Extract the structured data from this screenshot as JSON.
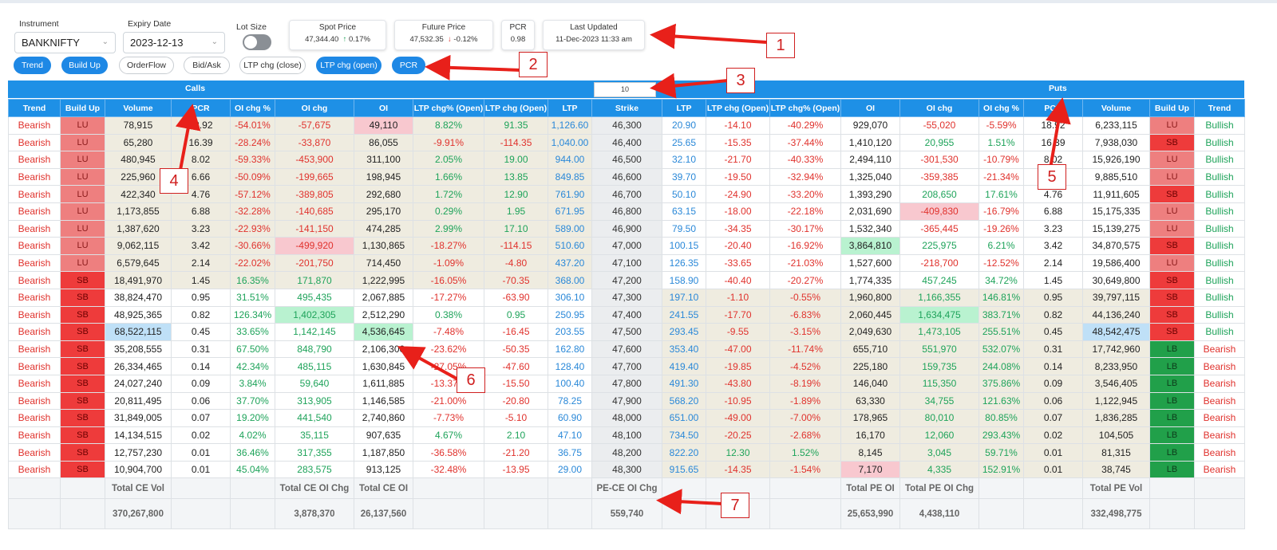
{
  "controls": {
    "instrument_label": "Instrument",
    "instrument_value": "BANKNIFTY",
    "expiry_label": "Expiry Date",
    "expiry_value": "2023-12-13",
    "lot_label": "Lot Size"
  },
  "cards": {
    "spot": {
      "title": "Spot Price",
      "value": "47,344.40",
      "change": "0.17%"
    },
    "future": {
      "title": "Future Price",
      "value": "47,532.35",
      "change": "-0.12%"
    },
    "pcr": {
      "title": "PCR",
      "value": "0.98"
    },
    "updated": {
      "title": "Last Updated",
      "value": "11-Dec-2023  11:33 am"
    }
  },
  "tabs": [
    "Trend",
    "Build Up",
    "OrderFlow",
    "Bid/Ask",
    "LTP chg (close)",
    "LTP chg (open)",
    "PCR"
  ],
  "bands": {
    "calls": "Calls",
    "puts": "Puts",
    "strike_step": "10"
  },
  "headers": [
    "Trend",
    "Build Up",
    "Volume",
    "PCR",
    "OI chg %",
    "OI chg",
    "OI",
    "LTP chg% (Open)",
    "LTP chg (Open)",
    "LTP",
    "Strike",
    "LTP",
    "LTP chg (Open)",
    "LTP chg% (Open)",
    "OI",
    "OI chg",
    "OI chg %",
    "PCR",
    "Volume",
    "Build Up",
    "Trend"
  ],
  "rows": [
    [
      "Bearish",
      "LU",
      "78,915",
      "18.92",
      "-54.01%",
      "-57,675",
      "49,110",
      "8.82%",
      "91.35",
      "1,126.60",
      "46,300",
      "20.90",
      "-14.10",
      "-40.29%",
      "929,070",
      "-55,020",
      "-5.59%",
      "18.92",
      "6,233,115",
      "LU",
      "Bullish"
    ],
    [
      "Bearish",
      "LU",
      "65,280",
      "16.39",
      "-28.24%",
      "-33,870",
      "86,055",
      "-9.91%",
      "-114.35",
      "1,040.00",
      "46,400",
      "25.65",
      "-15.35",
      "-37.44%",
      "1,410,120",
      "20,955",
      "1.51%",
      "16.39",
      "7,938,030",
      "SB",
      "Bullish"
    ],
    [
      "Bearish",
      "LU",
      "480,945",
      "8.02",
      "-59.33%",
      "-453,900",
      "311,100",
      "2.05%",
      "19.00",
      "944.00",
      "46,500",
      "32.10",
      "-21.70",
      "-40.33%",
      "2,494,110",
      "-301,530",
      "-10.79%",
      "8.02",
      "15,926,190",
      "LU",
      "Bullish"
    ],
    [
      "Bearish",
      "LU",
      "225,960",
      "6.66",
      "-50.09%",
      "-199,665",
      "198,945",
      "1.66%",
      "13.85",
      "849.85",
      "46,600",
      "39.70",
      "-19.50",
      "-32.94%",
      "1,325,040",
      "-359,385",
      "-21.34%",
      "6.66",
      "9,885,510",
      "LU",
      "Bullish"
    ],
    [
      "Bearish",
      "LU",
      "422,340",
      "4.76",
      "-57.12%",
      "-389,805",
      "292,680",
      "1.72%",
      "12.90",
      "761.90",
      "46,700",
      "50.10",
      "-24.90",
      "-33.20%",
      "1,393,290",
      "208,650",
      "17.61%",
      "4.76",
      "11,911,605",
      "SB",
      "Bullish"
    ],
    [
      "Bearish",
      "LU",
      "1,173,855",
      "6.88",
      "-32.28%",
      "-140,685",
      "295,170",
      "0.29%",
      "1.95",
      "671.95",
      "46,800",
      "63.15",
      "-18.00",
      "-22.18%",
      "2,031,690",
      "-409,830",
      "-16.79%",
      "6.88",
      "15,175,335",
      "LU",
      "Bullish"
    ],
    [
      "Bearish",
      "LU",
      "1,387,620",
      "3.23",
      "-22.93%",
      "-141,150",
      "474,285",
      "2.99%",
      "17.10",
      "589.00",
      "46,900",
      "79.50",
      "-34.35",
      "-30.17%",
      "1,532,340",
      "-365,445",
      "-19.26%",
      "3.23",
      "15,139,275",
      "LU",
      "Bullish"
    ],
    [
      "Bearish",
      "LU",
      "9,062,115",
      "3.42",
      "-30.66%",
      "-499,920",
      "1,130,865",
      "-18.27%",
      "-114.15",
      "510.60",
      "47,000",
      "100.15",
      "-20.40",
      "-16.92%",
      "3,864,810",
      "225,975",
      "6.21%",
      "3.42",
      "34,870,575",
      "SB",
      "Bullish"
    ],
    [
      "Bearish",
      "LU",
      "6,579,645",
      "2.14",
      "-22.02%",
      "-201,750",
      "714,450",
      "-1.09%",
      "-4.80",
      "437.20",
      "47,100",
      "126.35",
      "-33.65",
      "-21.03%",
      "1,527,600",
      "-218,700",
      "-12.52%",
      "2.14",
      "19,586,400",
      "LU",
      "Bullish"
    ],
    [
      "Bearish",
      "SB",
      "18,491,970",
      "1.45",
      "16.35%",
      "171,870",
      "1,222,995",
      "-16.05%",
      "-70.35",
      "368.00",
      "47,200",
      "158.90",
      "-40.40",
      "-20.27%",
      "1,774,335",
      "457,245",
      "34.72%",
      "1.45",
      "30,649,800",
      "SB",
      "Bullish"
    ],
    [
      "Bearish",
      "SB",
      "38,824,470",
      "0.95",
      "31.51%",
      "495,435",
      "2,067,885",
      "-17.27%",
      "-63.90",
      "306.10",
      "47,300",
      "197.10",
      "-1.10",
      "-0.55%",
      "1,960,800",
      "1,166,355",
      "146.81%",
      "0.95",
      "39,797,115",
      "SB",
      "Bullish"
    ],
    [
      "Bearish",
      "SB",
      "48,925,365",
      "0.82",
      "126.34%",
      "1,402,305",
      "2,512,290",
      "0.38%",
      "0.95",
      "250.95",
      "47,400",
      "241.55",
      "-17.70",
      "-6.83%",
      "2,060,445",
      "1,634,475",
      "383.71%",
      "0.82",
      "44,136,240",
      "SB",
      "Bullish"
    ],
    [
      "Bearish",
      "SB",
      "68,522,115",
      "0.45",
      "33.65%",
      "1,142,145",
      "4,536,645",
      "-7.48%",
      "-16.45",
      "203.55",
      "47,500",
      "293.45",
      "-9.55",
      "-3.15%",
      "2,049,630",
      "1,473,105",
      "255.51%",
      "0.45",
      "48,542,475",
      "SB",
      "Bullish"
    ],
    [
      "Bearish",
      "SB",
      "35,208,555",
      "0.31",
      "67.50%",
      "848,790",
      "2,106,300",
      "-23.62%",
      "-50.35",
      "162.80",
      "47,600",
      "353.40",
      "-47.00",
      "-11.74%",
      "655,710",
      "551,970",
      "532.07%",
      "0.31",
      "17,742,960",
      "LB",
      "Bearish"
    ],
    [
      "Bearish",
      "SB",
      "26,334,465",
      "0.14",
      "42.34%",
      "485,115",
      "1,630,845",
      "-27.05%",
      "-47.60",
      "128.40",
      "47,700",
      "419.40",
      "-19.85",
      "-4.52%",
      "225,180",
      "159,735",
      "244.08%",
      "0.14",
      "8,233,950",
      "LB",
      "Bearish"
    ],
    [
      "Bearish",
      "SB",
      "24,027,240",
      "0.09",
      "3.84%",
      "59,640",
      "1,611,885",
      "-13.37%",
      "-15.50",
      "100.40",
      "47,800",
      "491.30",
      "-43.80",
      "-8.19%",
      "146,040",
      "115,350",
      "375.86%",
      "0.09",
      "3,546,405",
      "LB",
      "Bearish"
    ],
    [
      "Bearish",
      "SB",
      "20,811,495",
      "0.06",
      "37.70%",
      "313,905",
      "1,146,585",
      "-21.00%",
      "-20.80",
      "78.25",
      "47,900",
      "568.20",
      "-10.95",
      "-1.89%",
      "63,330",
      "34,755",
      "121.63%",
      "0.06",
      "1,122,945",
      "LB",
      "Bearish"
    ],
    [
      "Bearish",
      "SB",
      "31,849,005",
      "0.07",
      "19.20%",
      "441,540",
      "2,740,860",
      "-7.73%",
      "-5.10",
      "60.90",
      "48,000",
      "651.00",
      "-49.00",
      "-7.00%",
      "178,965",
      "80,010",
      "80.85%",
      "0.07",
      "1,836,285",
      "LB",
      "Bearish"
    ],
    [
      "Bearish",
      "SB",
      "14,134,515",
      "0.02",
      "4.02%",
      "35,115",
      "907,635",
      "4.67%",
      "2.10",
      "47.10",
      "48,100",
      "734.50",
      "-20.25",
      "-2.68%",
      "16,170",
      "12,060",
      "293.43%",
      "0.02",
      "104,505",
      "LB",
      "Bearish"
    ],
    [
      "Bearish",
      "SB",
      "12,757,230",
      "0.01",
      "36.46%",
      "317,355",
      "1,187,850",
      "-36.58%",
      "-21.20",
      "36.75",
      "48,200",
      "822.20",
      "12.30",
      "1.52%",
      "8,145",
      "3,045",
      "59.71%",
      "0.01",
      "81,315",
      "LB",
      "Bearish"
    ],
    [
      "Bearish",
      "SB",
      "10,904,700",
      "0.01",
      "45.04%",
      "283,575",
      "913,125",
      "-32.48%",
      "-13.95",
      "29.00",
      "48,300",
      "915.65",
      "-14.35",
      "-1.54%",
      "7,170",
      "4,335",
      "152.91%",
      "0.01",
      "38,745",
      "LB",
      "Bearish"
    ]
  ],
  "totals": {
    "ce_vol_label": "Total CE Vol",
    "ce_vol": "370,267,800",
    "ce_oichg_label": "Total CE OI Chg",
    "ce_oichg": "3,878,370",
    "ce_oi_label": "Total CE OI",
    "ce_oi": "26,137,560",
    "pece_label": "PE-CE OI Chg",
    "pece": "559,740",
    "pe_oi_label": "Total PE OI",
    "pe_oi": "25,653,990",
    "pe_oichg_label": "Total PE OI Chg",
    "pe_oichg": "4,438,110",
    "pe_vol_label": "Total PE Vol",
    "pe_vol": "332,498,775"
  },
  "annotations": [
    "1",
    "2",
    "3",
    "4",
    "5",
    "6",
    "7"
  ],
  "colors": {
    "accent": "#1e90e6",
    "red": "#e0322d",
    "green": "#1ea35a",
    "blue": "#2a88d8"
  }
}
